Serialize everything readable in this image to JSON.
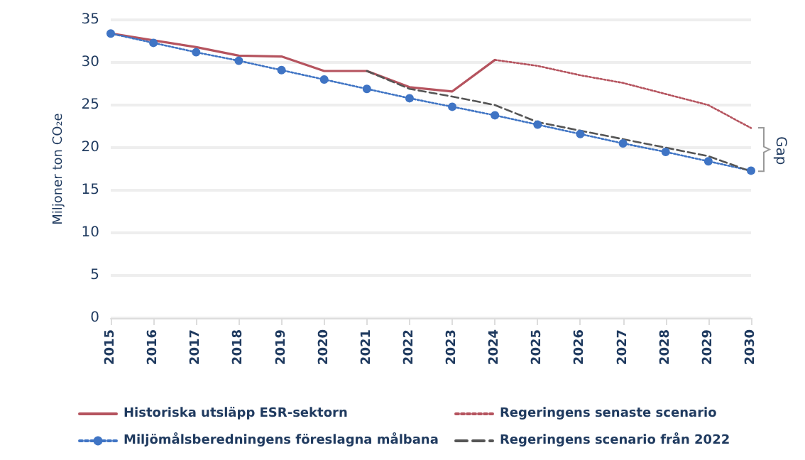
{
  "chart_data": {
    "type": "line",
    "ylabel": "Miljoner ton CO₂e",
    "annotations": [
      "Gap"
    ],
    "categories": [
      "2015",
      "2016",
      "2017",
      "2018",
      "2019",
      "2020",
      "2021",
      "2022",
      "2023",
      "2024",
      "2025",
      "2026",
      "2027",
      "2028",
      "2029",
      "2030"
    ],
    "series": [
      {
        "name": "Historiska utsläpp ESR-sektorn",
        "color": "#b5535e",
        "line_style": "solid",
        "marker": "none",
        "values": [
          33.4,
          32.6,
          31.8,
          30.8,
          30.7,
          29.0,
          29.0,
          27.1,
          26.6,
          30.3,
          null,
          null,
          null,
          null,
          null,
          null
        ]
      },
      {
        "name": "Miljömålsberedningens föreslagna målbana",
        "color": "#3f74c4",
        "line_style": "dotted",
        "marker": "circle",
        "values": [
          33.4,
          32.3,
          31.2,
          30.2,
          29.1,
          28.0,
          26.9,
          25.8,
          24.8,
          23.8,
          22.7,
          21.6,
          20.5,
          19.5,
          18.4,
          17.3
        ]
      },
      {
        "name": "Regeringens senaste scenario",
        "color": "#b5535e",
        "line_style": "dotted",
        "marker": "none",
        "values": [
          null,
          null,
          null,
          null,
          null,
          null,
          null,
          null,
          null,
          30.3,
          29.6,
          28.5,
          27.6,
          26.3,
          25.0,
          22.3
        ]
      },
      {
        "name": "Regeringens scenario från 2022",
        "color": "#555555",
        "line_style": "dashed",
        "marker": "none",
        "values": [
          null,
          null,
          null,
          null,
          null,
          null,
          29.0,
          26.9,
          26.0,
          25.0,
          23.0,
          22.0,
          21.0,
          20.0,
          19.0,
          17.2
        ]
      }
    ],
    "ylim": [
      0,
      35
    ],
    "yticks": [
      0,
      5,
      10,
      15,
      20,
      25,
      30,
      35
    ],
    "grid": "y",
    "legend": "bottom"
  }
}
